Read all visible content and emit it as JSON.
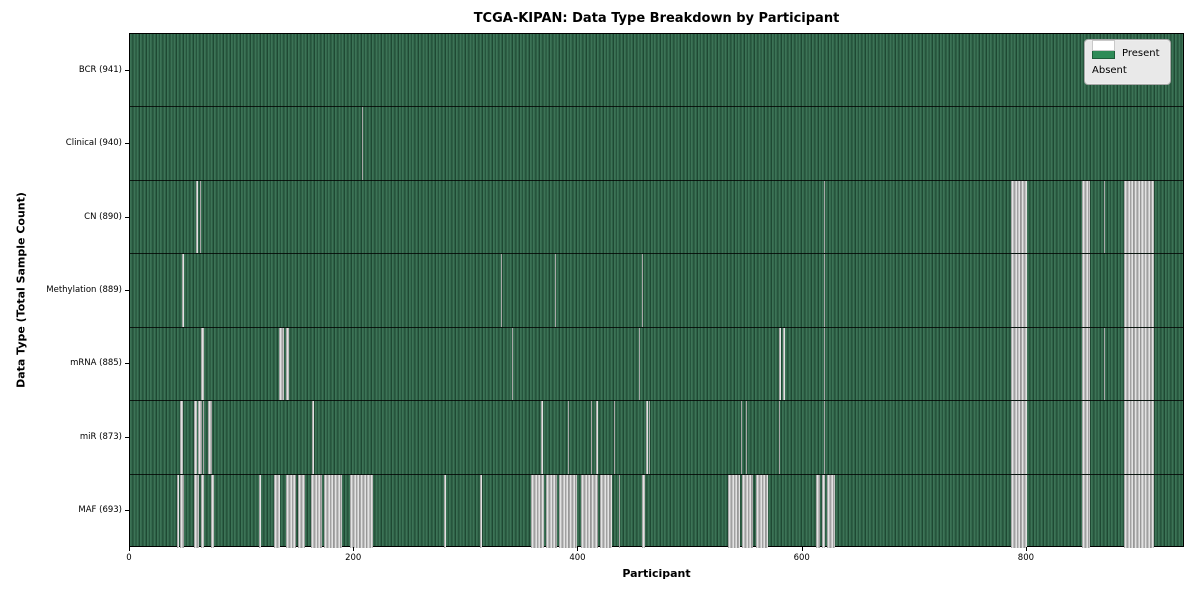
{
  "chart_data": {
    "type": "heatmap",
    "title": "TCGA-KIPAN: Data Type Breakdown by Participant",
    "xlabel": "Participant",
    "ylabel": "Data Type (Total Sample Count)",
    "x_ticks": [
      0,
      200,
      400,
      600,
      800
    ],
    "x_max": 941,
    "n_participants": 941,
    "grid": false,
    "legend_position": "upper right",
    "colors": {
      "present": "#2e8b57",
      "absent": "#ffffff",
      "absent_rendered": "#c8c8c8",
      "figure_bg": "#ffffff",
      "plot_border": "#000000"
    },
    "legend": [
      {
        "label": "Present",
        "color": "#2e8b57"
      },
      {
        "label": "Absent",
        "color": "#ffffff"
      }
    ],
    "rows": [
      {
        "name": "BCR",
        "label": "BCR (941)",
        "present_count": 941,
        "absent_ranges": []
      },
      {
        "name": "Clinical",
        "label": "Clinical (940)",
        "present_count": 940,
        "absent_ranges": [
          [
            207,
            208
          ]
        ]
      },
      {
        "name": "CN",
        "label": "CN (890)",
        "present_count": 890,
        "absent_ranges": [
          [
            59,
            61
          ],
          [
            62,
            63
          ],
          [
            619,
            620
          ],
          [
            786,
            800
          ],
          [
            849,
            856
          ],
          [
            869,
            870
          ],
          [
            887,
            913
          ]
        ]
      },
      {
        "name": "Methylation",
        "label": "Methylation (889)",
        "present_count": 889,
        "absent_ranges": [
          [
            46,
            48
          ],
          [
            331,
            332
          ],
          [
            379,
            380
          ],
          [
            457,
            458
          ],
          [
            619,
            620
          ],
          [
            786,
            800
          ],
          [
            849,
            856
          ],
          [
            887,
            913
          ]
        ]
      },
      {
        "name": "mRNA",
        "label": "mRNA (885)",
        "present_count": 885,
        "absent_ranges": [
          [
            63,
            66
          ],
          [
            133,
            137
          ],
          [
            139,
            142
          ],
          [
            341,
            342
          ],
          [
            454,
            455
          ],
          [
            579,
            581
          ],
          [
            582,
            584
          ],
          [
            619,
            620
          ],
          [
            786,
            800
          ],
          [
            849,
            856
          ],
          [
            869,
            870
          ],
          [
            887,
            913
          ]
        ]
      },
      {
        "name": "miR",
        "label": "miR (873)",
        "present_count": 873,
        "absent_ranges": [
          [
            45,
            47
          ],
          [
            57,
            60
          ],
          [
            61,
            64
          ],
          [
            65,
            66
          ],
          [
            70,
            73
          ],
          [
            162,
            164
          ],
          [
            367,
            368
          ],
          [
            391,
            392
          ],
          [
            411,
            412
          ],
          [
            416,
            417
          ],
          [
            432,
            433
          ],
          [
            460,
            462
          ],
          [
            463,
            464
          ],
          [
            545,
            546
          ],
          [
            549,
            550
          ],
          [
            579,
            580
          ],
          [
            619,
            620
          ],
          [
            786,
            800
          ],
          [
            849,
            856
          ],
          [
            887,
            913
          ]
        ]
      },
      {
        "name": "MAF",
        "label": "MAF (693)",
        "present_count": 693,
        "absent_ranges": [
          [
            42,
            44
          ],
          [
            45,
            48
          ],
          [
            57,
            62
          ],
          [
            63,
            66
          ],
          [
            72,
            75
          ],
          [
            115,
            117
          ],
          [
            128,
            134
          ],
          [
            139,
            148
          ],
          [
            150,
            156
          ],
          [
            161,
            171
          ],
          [
            173,
            189
          ],
          [
            196,
            217
          ],
          [
            280,
            282
          ],
          [
            312,
            314
          ],
          [
            358,
            369
          ],
          [
            371,
            381
          ],
          [
            383,
            399
          ],
          [
            402,
            417
          ],
          [
            419,
            430
          ],
          [
            436,
            437
          ],
          [
            457,
            459
          ],
          [
            533,
            544
          ],
          [
            546,
            556
          ],
          [
            558,
            569
          ],
          [
            612,
            615
          ],
          [
            617,
            620
          ],
          [
            622,
            629
          ],
          [
            786,
            800
          ],
          [
            849,
            856
          ],
          [
            887,
            913
          ]
        ]
      }
    ]
  }
}
